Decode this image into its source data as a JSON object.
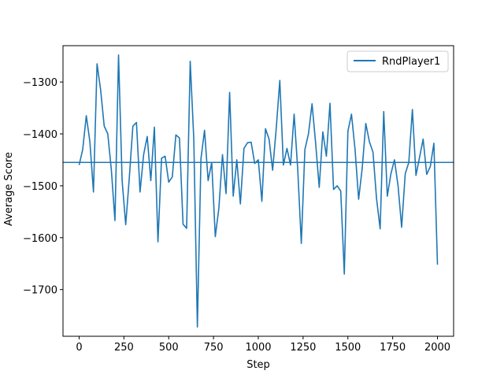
{
  "chart_data": {
    "type": "line",
    "title": "",
    "xlabel": "Step",
    "ylabel": "Average Score",
    "xlim": [
      -90,
      2090
    ],
    "ylim": [
      -1790,
      -1230
    ],
    "xticks": [
      0,
      250,
      500,
      750,
      1000,
      1250,
      1500,
      1750,
      2000
    ],
    "xtick_labels": [
      "0",
      "250",
      "500",
      "750",
      "1000",
      "1250",
      "1500",
      "1750",
      "2000"
    ],
    "yticks": [
      -1300,
      -1400,
      -1500,
      -1600,
      -1700
    ],
    "ytick_labels": [
      "−1300",
      "−1400",
      "−1500",
      "−1600",
      "−1700"
    ],
    "legend_position": "top-right",
    "colors": {
      "series": "#1f77b4",
      "frame": "#000000"
    },
    "hline": {
      "y": -1455,
      "color": "#1f77b4"
    },
    "series": [
      {
        "name": "RndPlayer1",
        "x": [
          0,
          20,
          40,
          60,
          80,
          100,
          120,
          140,
          160,
          180,
          200,
          220,
          240,
          260,
          280,
          300,
          320,
          340,
          360,
          380,
          400,
          420,
          440,
          460,
          480,
          500,
          520,
          540,
          560,
          580,
          600,
          620,
          640,
          660,
          680,
          700,
          720,
          740,
          760,
          780,
          800,
          820,
          840,
          860,
          880,
          900,
          920,
          940,
          960,
          980,
          1000,
          1020,
          1040,
          1060,
          1080,
          1100,
          1120,
          1140,
          1160,
          1180,
          1200,
          1220,
          1240,
          1260,
          1280,
          1300,
          1320,
          1340,
          1360,
          1380,
          1400,
          1420,
          1440,
          1460,
          1480,
          1500,
          1520,
          1540,
          1560,
          1580,
          1600,
          1620,
          1640,
          1660,
          1680,
          1700,
          1720,
          1740,
          1760,
          1780,
          1800,
          1820,
          1840,
          1860,
          1880,
          1900,
          1920,
          1940,
          1960,
          1980,
          2000
        ],
        "values": [
          -1460,
          -1430,
          -1365,
          -1415,
          -1512,
          -1265,
          -1315,
          -1385,
          -1400,
          -1470,
          -1567,
          -1248,
          -1490,
          -1575,
          -1485,
          -1385,
          -1378,
          -1512,
          -1440,
          -1405,
          -1490,
          -1387,
          -1608,
          -1447,
          -1443,
          -1493,
          -1483,
          -1402,
          -1408,
          -1574,
          -1582,
          -1260,
          -1410,
          -1772,
          -1448,
          -1393,
          -1490,
          -1455,
          -1598,
          -1543,
          -1440,
          -1515,
          -1320,
          -1520,
          -1450,
          -1535,
          -1428,
          -1417,
          -1416,
          -1457,
          -1450,
          -1530,
          -1390,
          -1410,
          -1470,
          -1390,
          -1297,
          -1460,
          -1428,
          -1460,
          -1362,
          -1468,
          -1611,
          -1430,
          -1400,
          -1342,
          -1418,
          -1503,
          -1396,
          -1443,
          -1341,
          -1507,
          -1500,
          -1510,
          -1670,
          -1395,
          -1362,
          -1430,
          -1526,
          -1466,
          -1380,
          -1415,
          -1435,
          -1525,
          -1583,
          -1357,
          -1520,
          -1477,
          -1450,
          -1500,
          -1580,
          -1477,
          -1455,
          -1353,
          -1480,
          -1445,
          -1410,
          -1478,
          -1463,
          -1418,
          -1652
        ]
      }
    ]
  }
}
